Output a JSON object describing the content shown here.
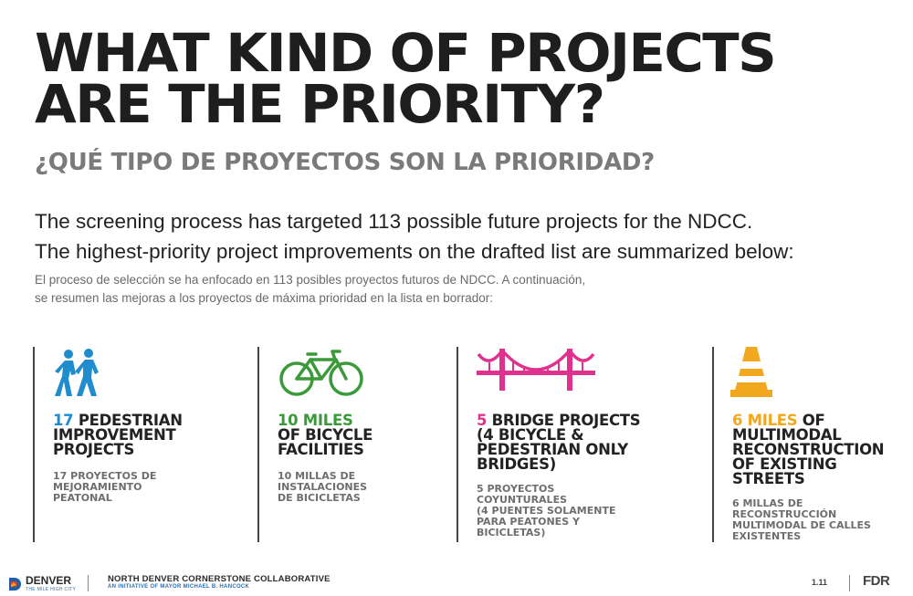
{
  "title": {
    "line1": "WHAT KIND OF PROJECTS",
    "line2": "ARE THE PRIORITY?"
  },
  "subtitle": "¿QUÉ TIPO DE PROYECTOS SON LA PRIORIDAD?",
  "intro": {
    "en_line1": "The screening process has targeted 113 possible future projects for the NDCC.",
    "en_line2": "The highest-priority project improvements on the drafted list are summarized below:",
    "es_line1": "El proceso de selección se ha enfocado en 113 posibles proyectos futuros de NDCC. A continuación,",
    "es_line2": "se resumen las mejoras a los proyectos de máxima prioridad en la lista en borrador:"
  },
  "colors": {
    "pedestrian": "#1f8ccd",
    "bicycle": "#3a9a3a",
    "bridge": "#e0318e",
    "cone": "#f2a81c"
  },
  "columns": [
    {
      "icon": "pedestrians-icon",
      "num": "17",
      "head_rest1": " PEDESTRIAN",
      "head_lines": [
        "IMPROVEMENT",
        "PROJECTS"
      ],
      "sub_lines": [
        "17 PROYECTOS DE",
        "MEJORAMIENTO",
        "PEATONAL"
      ]
    },
    {
      "icon": "bicycle-icon",
      "num": "10 MILES",
      "head_rest1": "",
      "head_lines": [
        "OF BICYCLE",
        "FACILITIES"
      ],
      "sub_lines": [
        "10 MILLAS DE",
        "INSTALACIONES",
        "DE BICICLETAS"
      ]
    },
    {
      "icon": "bridge-icon",
      "num": "5",
      "head_rest1": " BRIDGE PROJECTS",
      "head_lines": [
        "(4 BICYCLE &",
        "PEDESTRIAN ONLY",
        "BRIDGES)"
      ],
      "sub_lines": [
        "5 PROYECTOS",
        "COYUNTURALES",
        "(4 PUENTES SOLAMENTE",
        "PARA PEATONES Y",
        "BICICLETAS)"
      ]
    },
    {
      "icon": "traffic-cone-icon",
      "num": "6 MILES",
      "head_rest1": " OF",
      "head_lines": [
        "MULTIMODAL",
        "RECONSTRUCTION",
        "OF EXISTING",
        "STREETS"
      ],
      "sub_lines": [
        "6 MILLAS DE",
        "RECONSTRUCCIÓN",
        "MULTIMODAL DE CALLES",
        "EXISTENTES"
      ]
    }
  ],
  "footer": {
    "denver": "DENVER",
    "denver_tag": "THE MILE HIGH CITY",
    "collab": "NORTH DENVER CORNERSTONE COLLABORATIVE",
    "collab_sub": "AN INITIATIVE OF MAYOR MICHAEL B. HANCOCK",
    "page": "1.11",
    "firm": "FDR"
  }
}
